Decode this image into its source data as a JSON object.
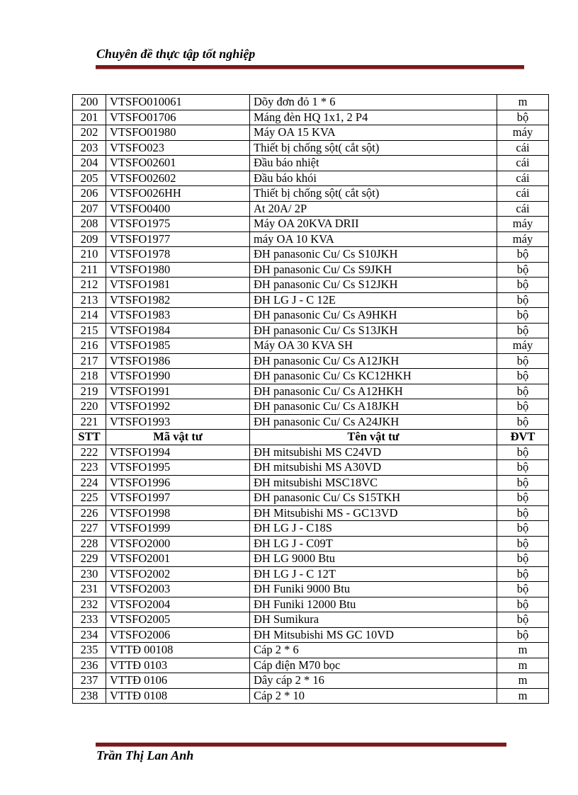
{
  "header": {
    "title": "Chuyên đề thực tập tốt nghiệp"
  },
  "footer": {
    "author": "Trần Thị Lan Anh"
  },
  "colors": {
    "rule": "#7a1a1a"
  },
  "table": {
    "columns": [
      "STT",
      "Mã vật tư",
      "Tên vật tư",
      "ĐVT"
    ],
    "rows_before": [
      [
        "200",
        "VTSFO010061",
        "Dõy đơn đỏ 1 * 6",
        "m"
      ],
      [
        "201",
        "VTSFO01706",
        "Máng đèn HQ 1x1, 2 P4",
        "bộ"
      ],
      [
        "202",
        "VTSFO01980",
        "Máy OA 15 KVA",
        "máy"
      ],
      [
        "203",
        "VTSFO023",
        "Thiết bị chống sột( cắt sột)",
        "cái"
      ],
      [
        "204",
        "VTSFO02601",
        "Đầu báo nhiệt",
        "cái"
      ],
      [
        "205",
        "VTSFO02602",
        "Đầu báo khói",
        "cái"
      ],
      [
        "206",
        "VTSFO026HH",
        "Thiết bị chống sột( cắt sột)",
        "cái"
      ],
      [
        "207",
        "VTSFO0400",
        "At 20A/ 2P",
        "cái"
      ],
      [
        "208",
        "VTSFO1975",
        "Máy OA 20KVA DRII",
        "máy"
      ],
      [
        "209",
        "VTSFO1977",
        "máy OA 10 KVA",
        "máy"
      ],
      [
        "210",
        "VTSFO1978",
        "ĐH panasonic Cu/ Cs S10JKH",
        "bộ"
      ],
      [
        "211",
        "VTSFO1980",
        "ĐH panasonic Cu/ Cs S9JKH",
        "bộ"
      ],
      [
        "212",
        "VTSFO1981",
        "ĐH panasonic Cu/ Cs S12JKH",
        "bộ"
      ],
      [
        "213",
        "VTSFO1982",
        "ĐH LG J - C 12E",
        "bộ"
      ],
      [
        "214",
        "VTSFO1983",
        "ĐH panasonic Cu/ Cs A9HKH",
        "bộ"
      ],
      [
        "215",
        "VTSFO1984",
        "ĐH panasonic Cu/ Cs S13JKH",
        "bộ"
      ],
      [
        "216",
        "VTSFO1985",
        "Máy OA 30 KVA SH",
        "máy"
      ],
      [
        "217",
        "VTSFO1986",
        "ĐH panasonic Cu/ Cs A12JKH",
        "bộ"
      ],
      [
        "218",
        "VTSFO1990",
        "ĐH panasonic Cu/ Cs KC12HKH",
        "bộ"
      ],
      [
        "219",
        "VTSFO1991",
        "ĐH panasonic Cu/ Cs A12HKH",
        "bộ"
      ],
      [
        "220",
        "VTSFO1992",
        "ĐH panasonic Cu/ Cs A18JKH",
        "bộ"
      ],
      [
        "221",
        "VTSFO1993",
        "ĐH panasonic Cu/ Cs A24JKH",
        "bộ"
      ]
    ],
    "rows_after": [
      [
        "222",
        "VTSFO1994",
        "ĐH mitsubishi MS C24VD",
        "bộ"
      ],
      [
        "223",
        "VTSFO1995",
        "ĐH mitsubishi MS A30VD",
        "bộ"
      ],
      [
        "224",
        "VTSFO1996",
        "ĐH mitsubishi MSC18VC",
        "bộ"
      ],
      [
        "225",
        "VTSFO1997",
        "ĐH panasonic Cu/ Cs S15TKH",
        "bộ"
      ],
      [
        "226",
        "VTSFO1998",
        "ĐH Mitsubishi MS - GC13VD",
        "bộ"
      ],
      [
        "227",
        "VTSFO1999",
        "ĐH LG J - C18S",
        "bộ"
      ],
      [
        "228",
        "VTSFO2000",
        "ĐH LG J - C09T",
        "bộ"
      ],
      [
        "229",
        "VTSFO2001",
        "ĐH LG 9000 Btu",
        "bộ"
      ],
      [
        "230",
        "VTSFO2002",
        "ĐH LG J - C 12T",
        "bộ"
      ],
      [
        "231",
        "VTSFO2003",
        "ĐH Funiki 9000 Btu",
        "bộ"
      ],
      [
        "232",
        "VTSFO2004",
        "ĐH Funiki 12000 Btu",
        "bộ"
      ],
      [
        "233",
        "VTSFO2005",
        "ĐH Sumikura",
        "bộ"
      ],
      [
        "234",
        "VTSFO2006",
        "ĐH Mitsubishi MS GC 10VD",
        "bộ"
      ],
      [
        "235",
        "VTTĐ 00108",
        "Cáp 2 * 6",
        "m"
      ],
      [
        "236",
        "VTTĐ 0103",
        "Cáp điện M70 bọc",
        "m"
      ],
      [
        "237",
        "VTTĐ 0106",
        "Dây cáp 2 * 16",
        "m"
      ],
      [
        "238",
        "VTTĐ 0108",
        "Cáp 2 * 10",
        "m"
      ]
    ]
  }
}
